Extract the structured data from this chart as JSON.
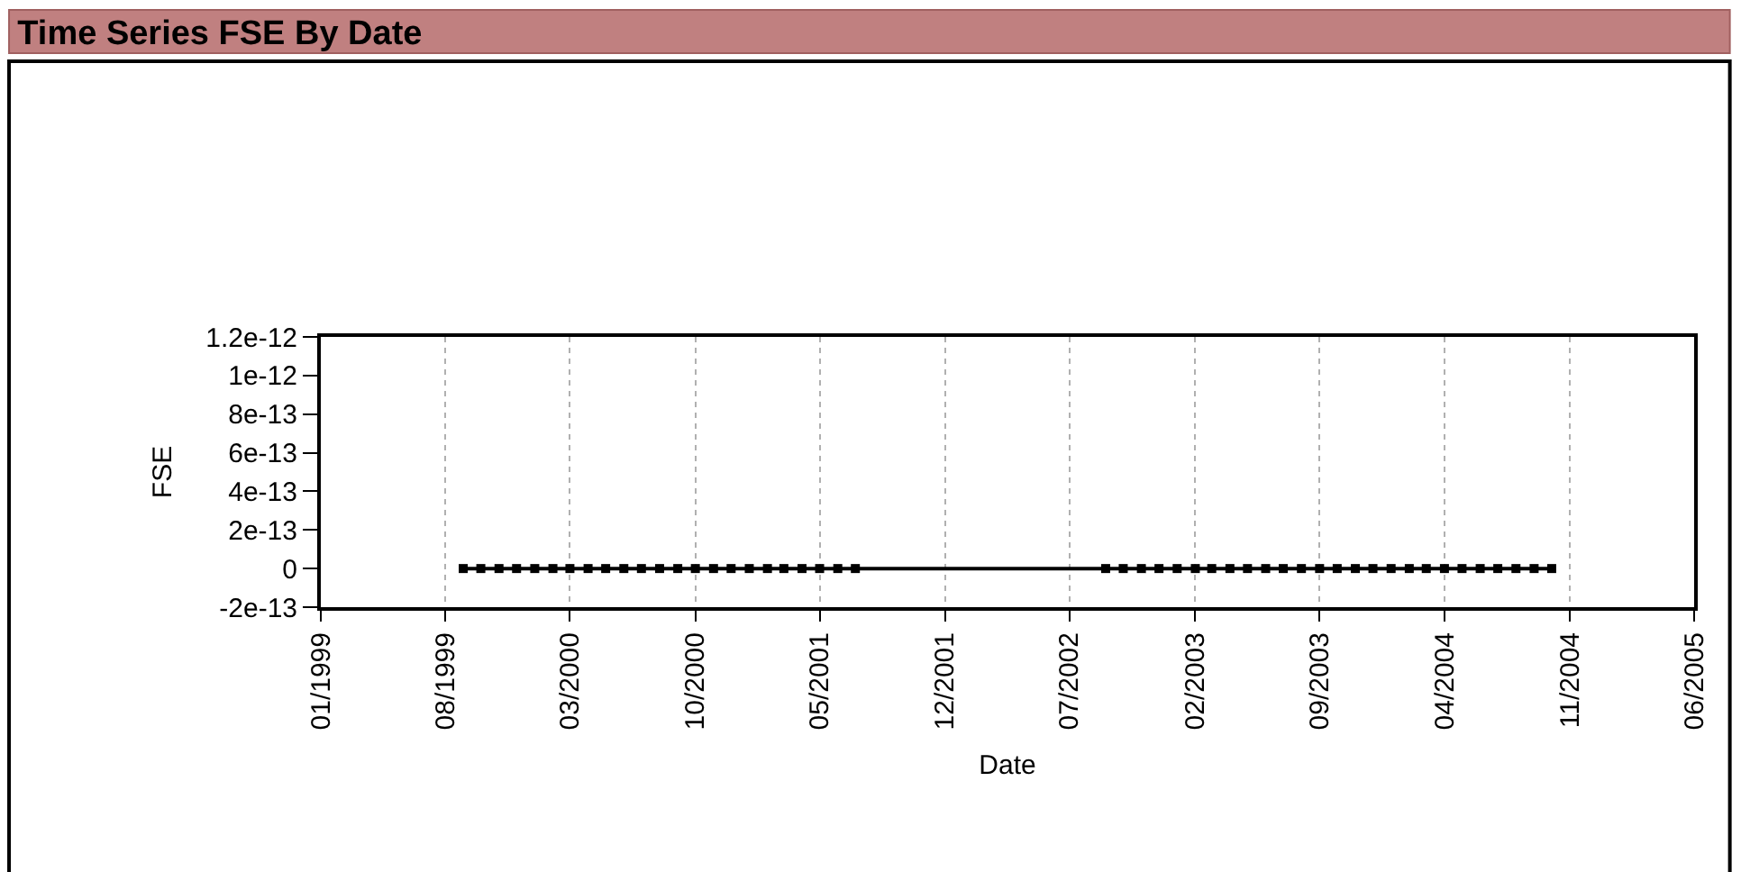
{
  "chart_data": {
    "type": "scatter",
    "title": "Time Series FSE By Date",
    "xlabel": "Date",
    "ylabel": "FSE",
    "series": [
      {
        "type": "line",
        "color": "#000000",
        "x": [
          "1999-09",
          "2004-10"
        ],
        "values": [
          0,
          0
        ],
        "marker": "none",
        "line_style": "solid"
      },
      {
        "color": "#000000",
        "marker": "square",
        "x": [
          "1999-09",
          "1999-10",
          "1999-11",
          "1999-12",
          "2000-01",
          "2000-02",
          "2000-03",
          "2000-04",
          "2000-05",
          "2000-06",
          "2000-07",
          "2000-08",
          "2000-09",
          "2000-10",
          "2000-11",
          "2000-12",
          "2001-01",
          "2001-02",
          "2001-03",
          "2001-04",
          "2001-05",
          "2001-06",
          "2001-07",
          "2002-09",
          "2002-10",
          "2002-11",
          "2002-12",
          "2003-01",
          "2003-02",
          "2003-03",
          "2003-04",
          "2003-05",
          "2003-06",
          "2003-07",
          "2003-08",
          "2003-09",
          "2003-10",
          "2003-11",
          "2003-12",
          "2004-01",
          "2004-02",
          "2004-03",
          "2004-04",
          "2004-05",
          "2004-06",
          "2004-07",
          "2004-08",
          "2004-09",
          "2004-10"
        ],
        "values": [
          0,
          0,
          0,
          0,
          0,
          0,
          0,
          0,
          0,
          0,
          0,
          0,
          0,
          0,
          0,
          0,
          0,
          0,
          0,
          0,
          0,
          0,
          0,
          0,
          0,
          0,
          0,
          0,
          0,
          0,
          0,
          0,
          0,
          0,
          0,
          0,
          0,
          0,
          0,
          0,
          0,
          0,
          0,
          0,
          0,
          0,
          0,
          0,
          0
        ]
      }
    ],
    "xlim": [
      "1999-01",
      "2005-06"
    ],
    "xticks": [
      {
        "value": "1999-01",
        "label": "01/1999"
      },
      {
        "value": "1999-08",
        "label": "08/1999"
      },
      {
        "value": "2000-03",
        "label": "03/2000"
      },
      {
        "value": "2000-10",
        "label": "10/2000"
      },
      {
        "value": "2001-05",
        "label": "05/2001"
      },
      {
        "value": "2001-12",
        "label": "12/2001"
      },
      {
        "value": "2002-07",
        "label": "07/2002"
      },
      {
        "value": "2003-02",
        "label": "02/2003"
      },
      {
        "value": "2003-09",
        "label": "09/2003"
      },
      {
        "value": "2004-04",
        "label": "04/2004"
      },
      {
        "value": "2004-11",
        "label": "11/2004"
      },
      {
        "value": "2005-06",
        "label": "06/2005"
      }
    ],
    "ylim": [
      -2e-13,
      1.2e-12
    ],
    "yticks": [
      {
        "value": -2e-13,
        "label": "-2e-13"
      },
      0,
      {
        "value": 2e-13,
        "label": "2e-13"
      },
      {
        "value": 4e-13,
        "label": "4e-13"
      },
      {
        "value": 6e-13,
        "label": "6e-13"
      },
      {
        "value": 8e-13,
        "label": "8e-13"
      },
      {
        "value": 1e-12,
        "label": "1e-12"
      },
      {
        "value": 1.2e-12,
        "label": "1.2e-12"
      }
    ],
    "grid": "x"
  }
}
